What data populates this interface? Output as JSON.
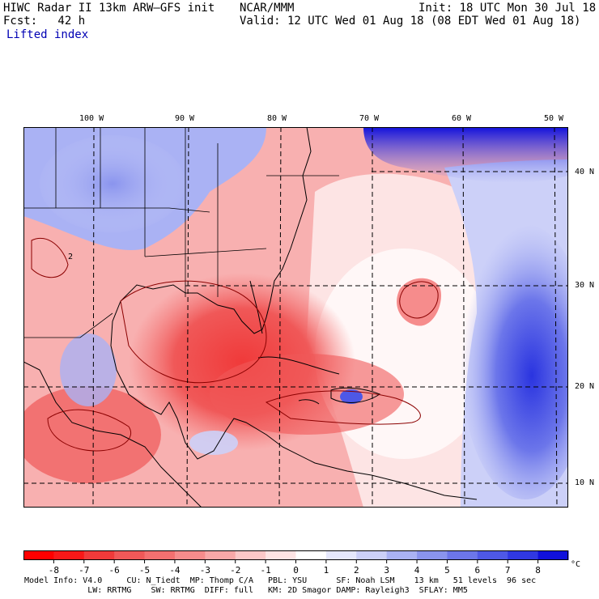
{
  "header": {
    "title": "HIWC Radar II 13km ARW–GFS init",
    "org": "NCAR/MMM",
    "init": "Init: 18 UTC Mon 30 Jul 18",
    "fcst": "Fcst:   42 h",
    "valid": "Valid: 12 UTC Wed 01 Aug 18 (08 EDT Wed 01 Aug 18)",
    "field": "Lifted index"
  },
  "map": {
    "lon_labels": [
      "100 W",
      "90 W",
      "80 W",
      "70 W",
      "60 W",
      "50 W"
    ],
    "lat_labels": [
      "40 N",
      "30 N",
      "20 N",
      "10 N"
    ],
    "contour_label": "2",
    "colors": {
      "neg_strong": "#ff2020",
      "neg_mid": "#f06666",
      "neg_light": "#f8b0b0",
      "neutral": "#ffffff",
      "pos_light": "#c8d0f8",
      "pos_mid": "#7080e8",
      "pos_strong": "#2020ff",
      "coast": "#000000",
      "contour": "#8b0000"
    }
  },
  "colorbar": {
    "ticks": [
      "-8",
      "-7",
      "-6",
      "-5",
      "-4",
      "-3",
      "-2",
      "-1",
      "0",
      "1",
      "2",
      "3",
      "4",
      "5",
      "6",
      "7",
      "8"
    ],
    "unit": "°C",
    "colors": [
      "#ff0000",
      "#f81818",
      "#f03a3a",
      "#f05858",
      "#f47070",
      "#f68c8c",
      "#f8a8a8",
      "#fbc8c8",
      "#fde4e4",
      "#ffffff",
      "#e6e8fc",
      "#ccd0f8",
      "#aab2f4",
      "#8a94ee",
      "#6c76ea",
      "#4e58e6",
      "#3038e2",
      "#1010dc"
    ]
  },
  "footer": {
    "line1": "Model Info: V4.0     CU: N_Tiedt  MP: Thomp C/A   PBL: YSU      SF: Noah LSM    13 km   51 levels  96 sec",
    "line2": "             LW: RRTMG    SW: RRTMG  DIFF: full   KM: 2D Smagor DAMP: Rayleigh3  SFLAY: MM5"
  }
}
